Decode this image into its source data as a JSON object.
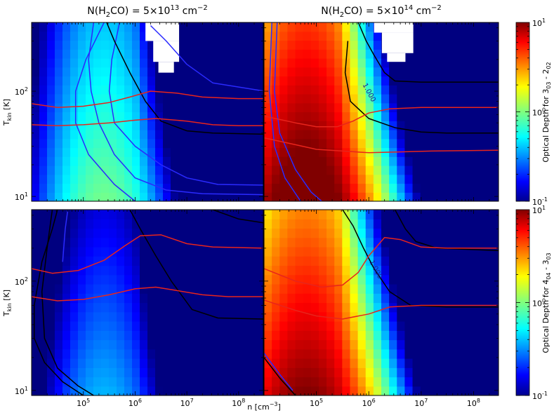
{
  "figure": {
    "col_titles": {
      "left": {
        "pre": "N(H",
        "sub1": "2",
        "mid": "CO) = 5×10",
        "sup": "13",
        "post": " cm",
        "sup2": "−2"
      },
      "right": {
        "pre": "N(H",
        "sub1": "2",
        "mid": "CO) = 5×10",
        "sup": "14",
        "post": " cm",
        "sup2": "−2"
      }
    },
    "ylabel": {
      "main": "T",
      "sub": "kin",
      "unit": " [K]"
    },
    "xlabel": {
      "main": "n [cm",
      "sup": "−3",
      "close": "]"
    },
    "colorbar_labels": {
      "top": {
        "pre": "Optical Depth for 3",
        "s1": "03",
        "mid": " - 2",
        "s2": "02"
      },
      "bottom": {
        "pre": "Optical Depth for 4",
        "s1": "04",
        "mid": " - 3",
        "s2": "03"
      }
    },
    "contour_labels": {
      "value": "1.000"
    }
  },
  "chart_data": {
    "type": "heatmap",
    "x_axis": {
      "label": "n [cm^-3]",
      "scale": "log",
      "lim": [
        10000,
        300000000
      ],
      "ticks": [
        100000,
        1000000,
        10000000,
        100000000
      ],
      "tick_labels": [
        {
          "base": "10",
          "exp": "5"
        },
        {
          "base": "10",
          "exp": "6"
        },
        {
          "base": "10",
          "exp": "7"
        },
        {
          "base": "10",
          "exp": "8"
        }
      ]
    },
    "y_axis": {
      "label": "T_kin [K]",
      "scale": "log",
      "lim": [
        9,
        450
      ],
      "ticks": [
        10,
        100
      ],
      "tick_labels": [
        {
          "base": "10",
          "exp": "1"
        },
        {
          "base": "10",
          "exp": "2"
        }
      ]
    },
    "colorbar": {
      "scale": "log",
      "lim": [
        0.1,
        10
      ],
      "ticks": [
        0.1,
        1,
        10
      ],
      "tick_labels": [
        {
          "base": "10",
          "exp": "-1"
        },
        {
          "base": "10",
          "exp": "0"
        },
        {
          "base": "10",
          "exp": "1"
        }
      ],
      "colormap": "jet"
    },
    "panels": [
      {
        "id": "top-left",
        "column": "N(H2CO) = 5x10^13 cm^-2",
        "quantity": "Optical Depth for 3_03 - 2_02",
        "peak_log_n": 5.4,
        "peak_log_tau": -0.15,
        "width": 1.55,
        "t_slope": 0.2,
        "t_ref": 40,
        "red_contours": [
          [
            [
              4,
              76
            ],
            [
              4.5,
              70
            ],
            [
              5,
              72
            ],
            [
              5.5,
              78
            ],
            [
              5.9,
              88
            ],
            [
              6.3,
              100
            ],
            [
              6.8,
              96
            ],
            [
              7.3,
              88
            ],
            [
              8,
              85
            ],
            [
              8.5,
              85
            ]
          ],
          [
            [
              4,
              48
            ],
            [
              4.5,
              47
            ],
            [
              5,
              48
            ],
            [
              5.5,
              50
            ],
            [
              6,
              53
            ],
            [
              6.4,
              55
            ],
            [
              7,
              52
            ],
            [
              7.5,
              48
            ],
            [
              8,
              47
            ],
            [
              8.5,
              47
            ]
          ]
        ],
        "black_contours": [
          [
            [
              5.45,
              450
            ],
            [
              5.6,
              300
            ],
            [
              5.9,
              150
            ],
            [
              6.2,
              80
            ],
            [
              6.5,
              52
            ],
            [
              7,
              42
            ],
            [
              7.5,
              40
            ],
            [
              8.5,
              39
            ]
          ]
        ],
        "blue_contours": [
          [
            [
              5.2,
              450
            ],
            [
              5.1,
              200
            ],
            [
              5.15,
              100
            ],
            [
              5.3,
              50
            ],
            [
              5.6,
              25
            ],
            [
              6,
              15
            ],
            [
              6.6,
              11.5
            ],
            [
              7.3,
              10.6
            ],
            [
              8.5,
              10.4
            ]
          ],
          [
            [
              5.7,
              450
            ],
            [
              5.55,
              200
            ],
            [
              5.5,
              100
            ],
            [
              5.6,
              50
            ],
            [
              6,
              30
            ],
            [
              6.5,
              20
            ],
            [
              7,
              15
            ],
            [
              7.6,
              13
            ],
            [
              8.5,
              12.8
            ]
          ],
          [
            [
              5.4,
              450
            ],
            [
              5.05,
              200
            ],
            [
              4.85,
              100
            ],
            [
              4.85,
              50
            ],
            [
              5.1,
              25
            ],
            [
              5.6,
              13
            ],
            [
              6,
              9
            ]
          ],
          [
            [
              6.3,
              420
            ],
            [
              6.6,
              300
            ],
            [
              7,
              180
            ],
            [
              7.5,
              120
            ],
            [
              8.5,
              100
            ]
          ]
        ],
        "masked": [
          [
            6.2,
            6.85,
            300,
            450
          ],
          [
            6.35,
            6.85,
            190,
            300
          ],
          [
            6.45,
            6.75,
            150,
            190
          ]
        ],
        "contour_label": null
      },
      {
        "id": "top-right",
        "column": "N(H2CO) = 5x10^14 cm^-2",
        "quantity": "Optical Depth for 3_03 - 2_02",
        "peak_log_n": 4.8,
        "peak_log_tau": 1.0,
        "width": 1.6,
        "t_slope": 0.3,
        "t_ref": 30,
        "red_contours": [
          [
            [
              4,
              58
            ],
            [
              4.6,
              50
            ],
            [
              5,
              46
            ],
            [
              5.4,
              46
            ],
            [
              5.7,
              52
            ],
            [
              6,
              62
            ],
            [
              6.4,
              68
            ],
            [
              7,
              70
            ],
            [
              7.5,
              70
            ],
            [
              8.5,
              70
            ]
          ],
          [
            [
              4,
              36
            ],
            [
              4.6,
              31
            ],
            [
              5,
              28
            ],
            [
              5.5,
              27
            ],
            [
              6,
              26
            ],
            [
              6.6,
              26.5
            ],
            [
              7.2,
              27
            ],
            [
              8.5,
              27.5
            ]
          ]
        ],
        "black_contours": [
          [
            [
              5.8,
              450
            ],
            [
              5.95,
              300
            ],
            [
              6.1,
              220
            ],
            [
              6.3,
              150
            ],
            [
              6.5,
              125
            ],
            [
              7,
              122
            ],
            [
              7.5,
              122
            ],
            [
              8.5,
              122
            ]
          ],
          [
            [
              5.6,
              300
            ],
            [
              5.55,
              150
            ],
            [
              5.65,
              80
            ],
            [
              6,
              55
            ],
            [
              6.5,
              45
            ],
            [
              7,
              41
            ],
            [
              7.5,
              40
            ],
            [
              8.5,
              40
            ]
          ]
        ],
        "blue_contours": [
          [
            [
              4.15,
              450
            ],
            [
              4.1,
              100
            ],
            [
              4.2,
              30
            ],
            [
              4.4,
              15
            ],
            [
              4.7,
              9
            ]
          ],
          [
            [
              4.25,
              450
            ],
            [
              4.2,
              100
            ],
            [
              4.3,
              40
            ],
            [
              4.6,
              18
            ],
            [
              4.9,
              11
            ],
            [
              5.1,
              9
            ]
          ]
        ],
        "masked": [
          [
            6.1,
            6.85,
            360,
            450
          ],
          [
            6.25,
            6.85,
            230,
            360
          ],
          [
            6.35,
            6.7,
            190,
            230
          ]
        ],
        "contour_label": {
          "log_n": 5.97,
          "t": 95
        }
      },
      {
        "id": "bottom-left",
        "column": "N(H2CO) = 5x10^13 cm^-2",
        "quantity": "Optical Depth for 4_04 - 3_03",
        "peak_log_n": 5.4,
        "peak_log_tau": -0.55,
        "width": 1.5,
        "t_slope": 0.25,
        "t_ref": 40,
        "red_contours": [
          [
            [
              4,
              130
            ],
            [
              4.4,
              118
            ],
            [
              4.9,
              125
            ],
            [
              5.4,
              155
            ],
            [
              5.8,
              210
            ],
            [
              6.1,
              260
            ],
            [
              6.5,
              265
            ],
            [
              7,
              220
            ],
            [
              7.5,
              205
            ],
            [
              8.5,
              200
            ]
          ],
          [
            [
              4,
              72
            ],
            [
              4.5,
              66
            ],
            [
              5,
              68
            ],
            [
              5.5,
              75
            ],
            [
              6,
              85
            ],
            [
              6.4,
              88
            ],
            [
              6.8,
              82
            ],
            [
              7.3,
              75
            ],
            [
              7.8,
              72
            ],
            [
              8.5,
              72
            ]
          ]
        ],
        "black_contours": [
          [
            [
              4.5,
              450
            ],
            [
              4.4,
              300
            ],
            [
              4.2,
              150
            ],
            [
              4.05,
              60
            ],
            [
              4.05,
              30
            ],
            [
              4.25,
              18
            ],
            [
              4.6,
              12
            ],
            [
              5,
              9
            ]
          ],
          [
            [
              4.4,
              450
            ],
            [
              4.3,
              200
            ],
            [
              4.2,
              80
            ],
            [
              4.25,
              30
            ],
            [
              4.5,
              16
            ],
            [
              4.9,
              11
            ],
            [
              5.2,
              9
            ]
          ],
          [
            [
              5.9,
              450
            ],
            [
              6.1,
              300
            ],
            [
              6.4,
              170
            ],
            [
              6.7,
              100
            ],
            [
              7.1,
              55
            ],
            [
              7.6,
              46
            ],
            [
              8.5,
              45
            ]
          ],
          [
            [
              7.5,
              450
            ],
            [
              8,
              370
            ],
            [
              8.5,
              340
            ]
          ]
        ],
        "blue_contours": [
          [
            [
              4.7,
              450
            ],
            [
              4.65,
              300
            ],
            [
              4.6,
              150
            ]
          ]
        ],
        "masked": [],
        "contour_label": null
      },
      {
        "id": "bottom-right",
        "column": "N(H2CO) = 5x10^14 cm^-2",
        "quantity": "Optical Depth for 4_04 - 3_03",
        "peak_log_n": 4.8,
        "peak_log_tau": 0.85,
        "width": 1.65,
        "t_slope": 0.3,
        "t_ref": 30,
        "red_contours": [
          [
            [
              4,
              130
            ],
            [
              4.6,
              100
            ],
            [
              5.1,
              88
            ],
            [
              5.5,
              92
            ],
            [
              5.8,
              120
            ],
            [
              6,
              170
            ],
            [
              6.3,
              250
            ],
            [
              6.6,
              240
            ],
            [
              7,
              205
            ],
            [
              7.5,
              200
            ],
            [
              8.5,
              200
            ]
          ],
          [
            [
              4,
              67
            ],
            [
              4.6,
              54
            ],
            [
              5,
              48
            ],
            [
              5.5,
              45
            ],
            [
              6,
              50
            ],
            [
              6.4,
              58
            ],
            [
              7,
              60
            ],
            [
              7.5,
              60
            ],
            [
              8.5,
              60
            ]
          ]
        ],
        "black_contours": [
          [
            [
              5.5,
              450
            ],
            [
              5.7,
              320
            ],
            [
              5.9,
              200
            ],
            [
              6.1,
              130
            ],
            [
              6.4,
              80
            ],
            [
              6.8,
              60
            ],
            [
              7.5,
              58
            ],
            [
              8.5,
              58
            ]
          ],
          [
            [
              6.5,
              450
            ],
            [
              6.7,
              300
            ],
            [
              6.9,
              230
            ],
            [
              7.3,
              200
            ],
            [
              8.5,
              190
            ]
          ],
          [
            [
              4,
              20
            ],
            [
              4.3,
              13
            ],
            [
              4.6,
              9
            ]
          ]
        ],
        "blue_contours": [
          [
            [
              4,
              22
            ],
            [
              4.3,
              14
            ],
            [
              4.55,
              10
            ]
          ]
        ],
        "masked": [],
        "contour_label": {
          "log_n": 6.1,
          "t": 125
        }
      }
    ]
  }
}
